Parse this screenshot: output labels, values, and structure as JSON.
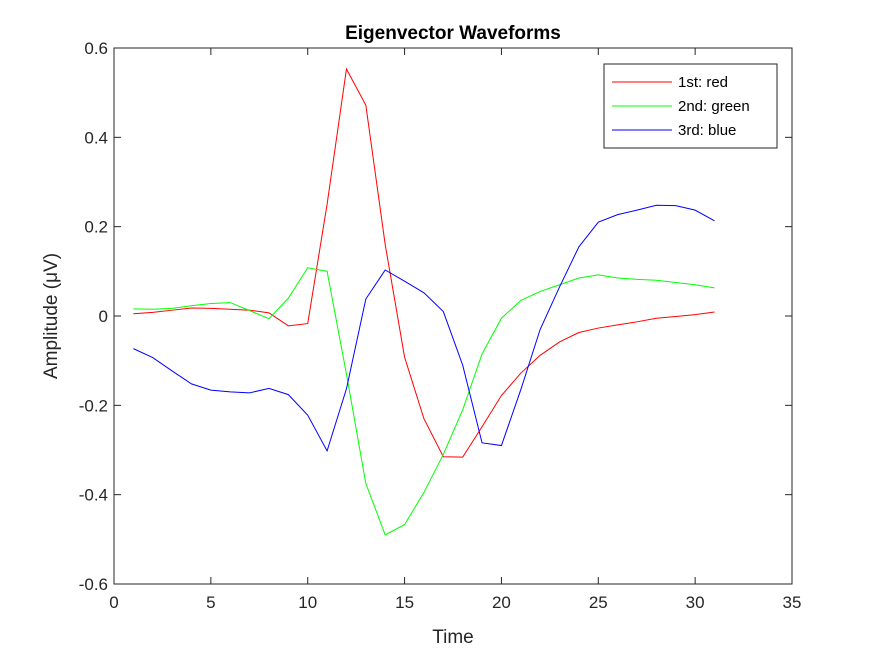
{
  "chart_data": {
    "type": "line",
    "title": "Eigenvector Waveforms",
    "xlabel": "Time",
    "ylabel": "Amplitude (μV)",
    "xlim": [
      0,
      35
    ],
    "ylim": [
      -0.6,
      0.6
    ],
    "xticks": [
      0,
      5,
      10,
      15,
      20,
      25,
      30,
      35
    ],
    "yticks": [
      -0.6,
      -0.4,
      -0.2,
      0,
      0.2,
      0.4,
      0.6
    ],
    "ytick_labels": [
      "-0.6",
      "-0.4",
      "-0.2",
      "0",
      "0.2",
      "0.4",
      "0.6"
    ],
    "grid": false,
    "legend_position": "top-right",
    "x": [
      1,
      2,
      3,
      4,
      5,
      6,
      7,
      8,
      9,
      10,
      11,
      12,
      13,
      14,
      15,
      16,
      17,
      18,
      19,
      20,
      21,
      22,
      23,
      24,
      25,
      26,
      27,
      28,
      29,
      30,
      31
    ],
    "series": [
      {
        "name": "1st: red",
        "color": "#ff0000",
        "values": [
          0.005,
          0.008,
          0.013,
          0.018,
          0.017,
          0.015,
          0.013,
          0.007,
          -0.022,
          -0.017,
          0.25,
          0.553,
          0.472,
          0.16,
          -0.092,
          -0.23,
          -0.315,
          -0.316,
          -0.248,
          -0.178,
          -0.128,
          -0.088,
          -0.058,
          -0.037,
          -0.027,
          -0.02,
          -0.013,
          -0.005,
          -0.001,
          0.003,
          0.009
        ]
      },
      {
        "name": "2nd: green",
        "color": "#00ff00",
        "values": [
          0.016,
          0.015,
          0.017,
          0.023,
          0.028,
          0.03,
          0.012,
          -0.006,
          0.04,
          0.108,
          0.1,
          -0.13,
          -0.375,
          -0.49,
          -0.467,
          -0.395,
          -0.31,
          -0.21,
          -0.085,
          -0.005,
          0.035,
          0.055,
          0.07,
          0.085,
          0.092,
          0.085,
          0.082,
          0.08,
          0.075,
          0.07,
          0.063
        ]
      },
      {
        "name": "3rd: blue",
        "color": "#0000ff",
        "values": [
          -0.073,
          -0.093,
          -0.123,
          -0.152,
          -0.166,
          -0.17,
          -0.172,
          -0.162,
          -0.176,
          -0.222,
          -0.302,
          -0.163,
          0.038,
          0.103,
          0.078,
          0.052,
          0.01,
          -0.11,
          -0.284,
          -0.29,
          -0.165,
          -0.03,
          0.065,
          0.155,
          0.21,
          0.227,
          0.237,
          0.248,
          0.247,
          0.237,
          0.213
        ]
      }
    ]
  }
}
